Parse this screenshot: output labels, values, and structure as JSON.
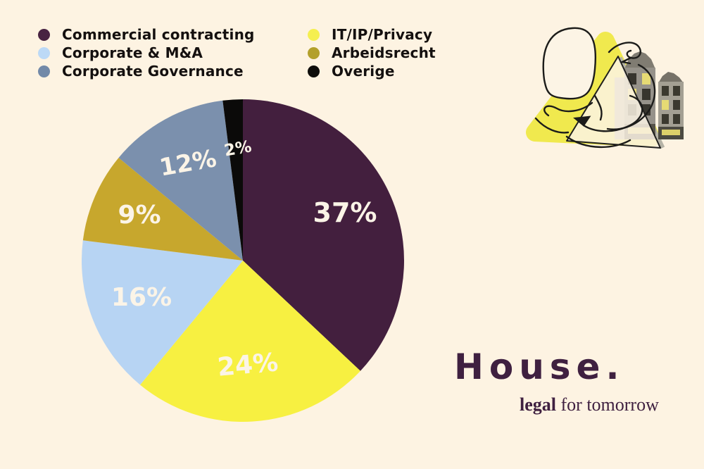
{
  "background_color": "#fdf3e2",
  "legend": {
    "items": [
      {
        "label": "Commercial contracting",
        "color": "#482342"
      },
      {
        "label": "Corporate & M&A",
        "color": "#bcd9f6"
      },
      {
        "label": "Corporate Governance",
        "color": "#7289a8"
      },
      {
        "label": "IT/IP/Privacy",
        "color": "#f5ef50"
      },
      {
        "label": "Arbeidsrecht",
        "color": "#b3a02b"
      },
      {
        "label": "Overige",
        "color": "#0e0d0b"
      }
    ]
  },
  "chart_data": {
    "type": "pie",
    "title": "",
    "start_angle_deg": 0,
    "direction": "clockwise",
    "legend_position": "top-left",
    "label_color": "#fbf4e7",
    "slices": [
      {
        "id": "commercial-contracting",
        "label": "Commercial contracting",
        "value": 37,
        "display": "37%",
        "color": "#431f3e"
      },
      {
        "id": "it-ip-privacy",
        "label": "IT/IP/Privacy",
        "value": 24,
        "display": "24%",
        "color": "#f7f041"
      },
      {
        "id": "corporate-ma",
        "label": "Corporate & M&A",
        "value": 16,
        "display": "16%",
        "color": "#b7d4f3"
      },
      {
        "id": "arbeidsrecht",
        "label": "Arbeidsrecht",
        "value": 9,
        "display": "9%",
        "color": "#c7a72d"
      },
      {
        "id": "corporate-governance",
        "label": "Corporate Governance",
        "value": 12,
        "display": "12%",
        "color": "#7b90ad"
      },
      {
        "id": "overige",
        "label": "Overige",
        "value": 2,
        "display": "2%",
        "color": "#0b0a09"
      }
    ]
  },
  "logo": {
    "wordmark": "House.",
    "tagline_bold": "legal",
    "tagline_rest": " for tomorrow",
    "color": "#3f2040"
  },
  "illustration": {
    "name": "scribble-figure-with-canal-houses",
    "triangle_color": "#f0e94e"
  }
}
